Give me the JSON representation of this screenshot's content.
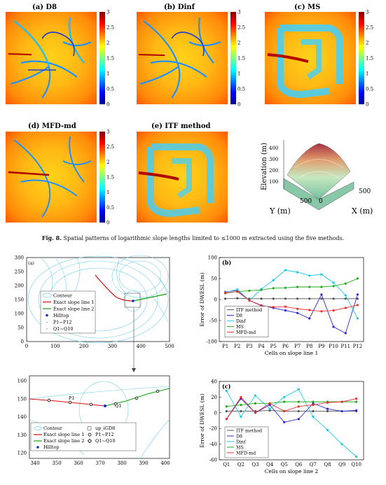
{
  "top_panels": [
    {
      "label": "(a) D8"
    },
    {
      "label": "(b) Dinf"
    },
    {
      "label": "(c) MS"
    },
    {
      "label": "(d) MFD-md"
    },
    {
      "label": "(e) ITF method"
    }
  ],
  "colorbar": {
    "ticks": [
      "3",
      "2.5",
      "2",
      "1.5",
      "1",
      "0.5",
      "0"
    ]
  },
  "terrain3d": {
    "zlabel": "Elevation (m)",
    "zticks": [
      "400",
      "300",
      "200",
      "100"
    ],
    "ylabel": "Y (m)",
    "xlabel": "X (m)",
    "ytick": "500",
    "xtick_0": "0",
    "xtick_500": "500"
  },
  "caption": {
    "fig": "Fig. 8.",
    "text": "Spatial patterns of logarithmic slope lengths limited to ≤1000 m extracted using the five methods."
  },
  "panel_a": {
    "label": "(a)",
    "yticks": [
      "300",
      "250",
      "200",
      "150",
      "100",
      "50",
      "0"
    ],
    "xticks": [
      "0",
      "100",
      "200",
      "300",
      "400",
      "500"
    ],
    "legend": [
      "Contour",
      "Exact slope line 1",
      "Exact slope line 2",
      "Hilltop",
      "P1~P12",
      "Q1~Q10"
    ]
  },
  "panel_zoom": {
    "yticks": [
      "160",
      "150",
      "140",
      "130",
      "120"
    ],
    "xticks": [
      "340",
      "350",
      "360",
      "370",
      "380",
      "390",
      "400"
    ],
    "legend": [
      "Contour",
      "Exact slope line 1",
      "Exact slope line 2",
      "Hilltop",
      "up_iGD8",
      "P1~P12",
      "Q1~Q10"
    ],
    "p1_label": "P1",
    "q1_label": "Q1"
  },
  "chart_data": [
    {
      "type": "line",
      "title": "(b)",
      "xlabel": "Cells on slope line 1",
      "ylabel": "Error of DWESL (m)",
      "categories": [
        "P1",
        "P2",
        "P3",
        "P4",
        "P5",
        "P6",
        "P7",
        "P8",
        "P9",
        "P10",
        "P11",
        "P12"
      ],
      "ylim": [
        -100,
        100
      ],
      "yticks": [
        "100",
        "50",
        "0",
        "-50",
        "-100"
      ],
      "series": [
        {
          "name": "ITF method",
          "color": "#555555",
          "values": [
            2,
            3,
            2,
            2,
            2,
            2,
            2,
            2,
            2,
            2,
            2,
            2
          ]
        },
        {
          "name": "D8",
          "color": "#2a2ad0",
          "values": [
            18,
            22,
            -2,
            -14,
            -20,
            -26,
            -32,
            -45,
            12,
            -65,
            -80,
            12
          ]
        },
        {
          "name": "Dinf",
          "color": "#1cc8e8",
          "values": [
            17,
            24,
            -2,
            25,
            46,
            70,
            65,
            57,
            60,
            40,
            10,
            -45
          ]
        },
        {
          "name": "MS",
          "color": "#22aa22",
          "values": [
            15,
            19,
            21,
            23,
            27,
            28,
            30,
            30,
            30,
            32,
            38,
            50
          ]
        },
        {
          "name": "MFD-md",
          "color": "#e83030",
          "values": [
            16,
            19,
            -2,
            -15,
            -18,
            -17,
            -22,
            -25,
            -28,
            -26,
            -20,
            -13
          ]
        }
      ]
    },
    {
      "type": "line",
      "title": "(c)",
      "xlabel": "Cells on slope line 2",
      "ylabel": "Error of DWESL (m)",
      "categories": [
        "Q1",
        "Q2",
        "Q3",
        "Q4",
        "Q5",
        "Q6",
        "Q7",
        "Q8",
        "Q9",
        "Q10"
      ],
      "ylim": [
        -60,
        40
      ],
      "yticks": [
        "40",
        "20",
        "0",
        "-20",
        "-40",
        "-60"
      ],
      "series": [
        {
          "name": "ITF method",
          "color": "#555555",
          "values": [
            2,
            2,
            2,
            3,
            2,
            2,
            2,
            2,
            2,
            2
          ]
        },
        {
          "name": "D8",
          "color": "#2a2ad0",
          "values": [
            -8,
            18,
            0,
            10,
            -12,
            -8,
            12,
            5,
            2,
            3
          ]
        },
        {
          "name": "Dinf",
          "color": "#1cc8e8",
          "values": [
            28,
            -5,
            22,
            5,
            20,
            30,
            -5,
            -22,
            -40,
            -56
          ]
        },
        {
          "name": "MS",
          "color": "#22aa22",
          "values": [
            8,
            10,
            12,
            12,
            14,
            14,
            14,
            14,
            14,
            14
          ]
        },
        {
          "name": "MFD-md",
          "color": "#e83030",
          "values": [
            -8,
            20,
            0,
            12,
            2,
            8,
            10,
            13,
            14,
            18
          ]
        }
      ]
    }
  ]
}
